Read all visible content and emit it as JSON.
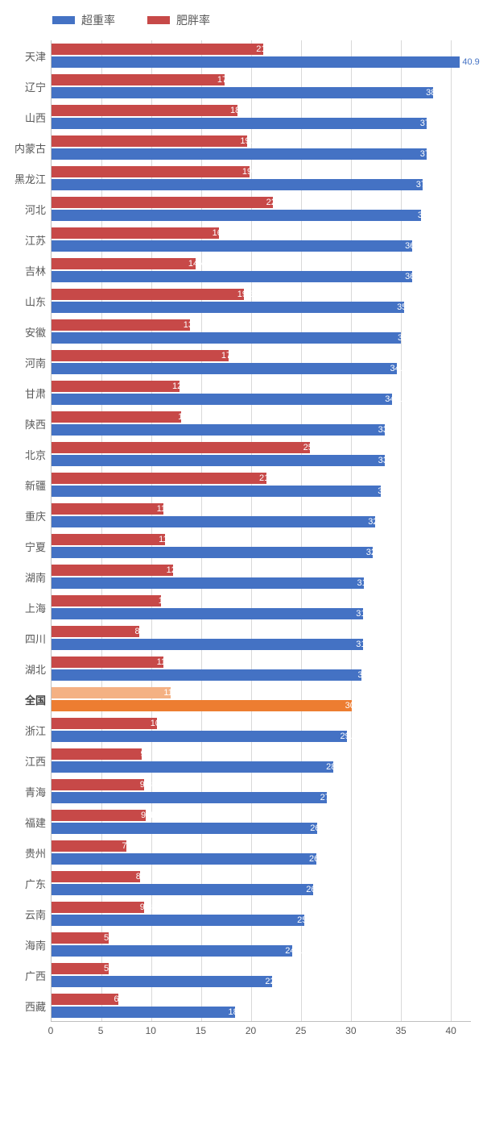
{
  "legend": [
    {
      "label": "超重率",
      "color": "#4472c4"
    },
    {
      "label": "肥胖率",
      "color": "#c74948"
    }
  ],
  "chart": {
    "type": "grouped-horizontal-bar",
    "xmin": 0,
    "xmax": 42,
    "xticks": [
      0,
      5,
      10,
      15,
      20,
      25,
      30,
      35,
      40
    ],
    "background_color": "#ffffff",
    "grid_color": "#d9d9d9",
    "axis_color": "#bfbfbf",
    "label_fontsize": 13,
    "value_fontsize": 11,
    "national_label": "全国",
    "highlight_overweight_color": "#ed7d31",
    "highlight_obesity_color": "#f4b183",
    "series": {
      "overweight": {
        "color": "#4472c4"
      },
      "obesity": {
        "color": "#c74948"
      }
    },
    "rows": [
      {
        "label": "天津",
        "overweight": 40.9,
        "obesity": 21.2
      },
      {
        "label": "辽宁",
        "overweight": 38.2,
        "obesity": 17.3
      },
      {
        "label": "山西",
        "overweight": 37.6,
        "obesity": 18.6
      },
      {
        "label": "内蒙古",
        "overweight": 37.6,
        "obesity": 19.6
      },
      {
        "label": "黑龙江",
        "overweight": 37.2,
        "obesity": 19.8
      },
      {
        "label": "河北",
        "overweight": 37.0,
        "obesity": 22.2
      },
      {
        "label": "江苏",
        "overweight": 36.1,
        "obesity": 16.8
      },
      {
        "label": "吉林",
        "overweight": 36.1,
        "obesity": 14.4
      },
      {
        "label": "山东",
        "overweight": 35.3,
        "obesity": 19.3
      },
      {
        "label": "安徽",
        "overweight": 35.0,
        "obesity": 13.9
      },
      {
        "label": "河南",
        "overweight": 34.6,
        "obesity": 17.7
      },
      {
        "label": "甘肃",
        "overweight": 34.1,
        "obesity": 12.8
      },
      {
        "label": "陕西",
        "overweight": 33.4,
        "obesity": 13.0
      },
      {
        "label": "北京",
        "overweight": 33.4,
        "obesity": 25.9
      },
      {
        "label": "新疆",
        "overweight": 33.0,
        "obesity": 21.5
      },
      {
        "label": "重庆",
        "overweight": 32.4,
        "obesity": 11.2
      },
      {
        "label": "宁夏",
        "overweight": 32.2,
        "obesity": 11.4
      },
      {
        "label": "湖南",
        "overweight": 31.3,
        "obesity": 12.2
      },
      {
        "label": "上海",
        "overweight": 31.2,
        "obesity": 11.0
      },
      {
        "label": "四川",
        "overweight": 31.2,
        "obesity": 8.8
      },
      {
        "label": "湖北",
        "overweight": 31.0,
        "obesity": 11.2
      },
      {
        "label": "全国",
        "overweight": 30.1,
        "obesity": 11.9,
        "highlight": true
      },
      {
        "label": "浙江",
        "overweight": 29.6,
        "obesity": 10.6
      },
      {
        "label": "江西",
        "overweight": 28.2,
        "obesity": 9.0
      },
      {
        "label": "青海",
        "overweight": 27.6,
        "obesity": 9.3
      },
      {
        "label": "福建",
        "overweight": 26.6,
        "obesity": 9.4
      },
      {
        "label": "贵州",
        "overweight": 26.5,
        "obesity": 7.5
      },
      {
        "label": "广东",
        "overweight": 26.2,
        "obesity": 8.9
      },
      {
        "label": "云南",
        "overweight": 25.3,
        "obesity": 9.3
      },
      {
        "label": "海南",
        "overweight": 24.1,
        "obesity": 5.7
      },
      {
        "label": "广西",
        "overweight": 22.1,
        "obesity": 5.7
      },
      {
        "label": "西藏",
        "overweight": 18.4,
        "obesity": 6.7
      }
    ]
  }
}
